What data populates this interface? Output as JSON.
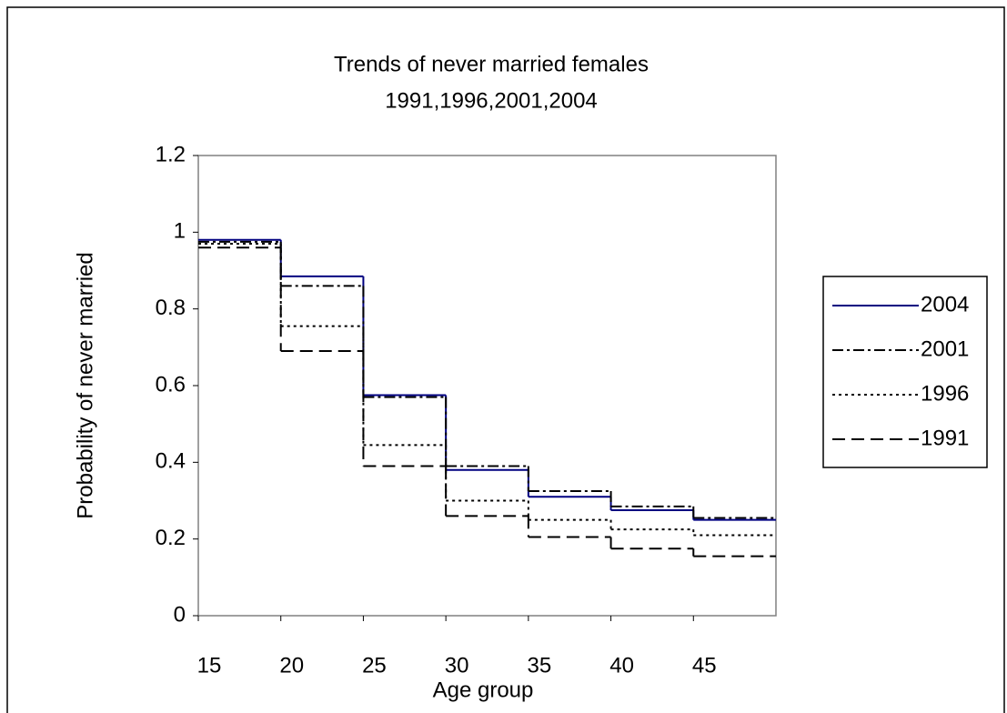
{
  "chart_data": {
    "type": "step",
    "title": "Trends of never married females",
    "subtitle": "1991,1996,2001,2004",
    "x_label": "Age group",
    "y_label": "Probability of never married",
    "x": [
      15,
      20,
      25,
      30,
      35,
      40,
      45
    ],
    "xlim": [
      15,
      50
    ],
    "xticks": [
      15,
      20,
      25,
      30,
      35,
      40,
      45
    ],
    "ylim": [
      0,
      1.2
    ],
    "yticks": [
      0,
      0.2,
      0.4,
      0.6,
      0.8,
      1,
      1.2
    ],
    "grid": false,
    "legend": "right",
    "series": [
      {
        "name": "2004",
        "color": "#000080",
        "linestyle": "solid",
        "values": [
          0.98,
          0.885,
          0.575,
          0.38,
          0.31,
          0.275,
          0.25
        ]
      },
      {
        "name": "2001",
        "color": "#000000",
        "linestyle": "dashdot",
        "values": [
          0.975,
          0.86,
          0.57,
          0.39,
          0.325,
          0.285,
          0.255
        ]
      },
      {
        "name": "1996",
        "color": "#000000",
        "linestyle": "dotted",
        "values": [
          0.97,
          0.755,
          0.445,
          0.3,
          0.25,
          0.225,
          0.21
        ]
      },
      {
        "name": "1991",
        "color": "#000000",
        "linestyle": "dashed",
        "values": [
          0.96,
          0.69,
          0.39,
          0.26,
          0.205,
          0.175,
          0.155
        ]
      }
    ]
  }
}
